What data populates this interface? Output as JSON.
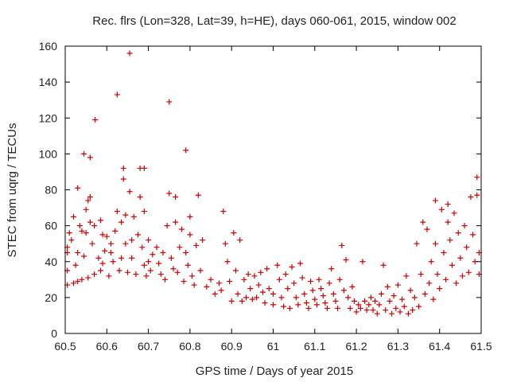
{
  "chart_data": {
    "type": "scatter",
    "title": "Rec. flrs (Lon=328, Lat=39, h=HE), days 060-061, 2015, window 002",
    "xlabel": "GPS time / Days of year 2015",
    "ylabel": "STEC from uqrg / TECUs",
    "xlim": [
      60.5,
      61.5
    ],
    "ylim": [
      0,
      160
    ],
    "xticks": [
      "60.5",
      "60.6",
      "60.7",
      "60.8",
      "60.9",
      "61",
      "61.1",
      "61.2",
      "61.3",
      "61.4",
      "61.5"
    ],
    "yticks": [
      "0",
      "20",
      "40",
      "60",
      "80",
      "100",
      "120",
      "140",
      "160"
    ],
    "marker": "+",
    "color": "#cc0000",
    "series": [
      {
        "name": "STEC",
        "points": [
          [
            60.505,
            27
          ],
          [
            60.505,
            35
          ],
          [
            60.505,
            45
          ],
          [
            60.505,
            48
          ],
          [
            60.51,
            56
          ],
          [
            60.515,
            52
          ],
          [
            60.52,
            65
          ],
          [
            60.52,
            28
          ],
          [
            60.525,
            38
          ],
          [
            60.53,
            45
          ],
          [
            60.53,
            29
          ],
          [
            60.53,
            81
          ],
          [
            60.535,
            60
          ],
          [
            60.54,
            57
          ],
          [
            60.54,
            30
          ],
          [
            60.545,
            100
          ],
          [
            60.545,
            43
          ],
          [
            60.55,
            69
          ],
          [
            60.55,
            56
          ],
          [
            60.555,
            74
          ],
          [
            60.555,
            31
          ],
          [
            60.56,
            98
          ],
          [
            60.56,
            76
          ],
          [
            60.56,
            62
          ],
          [
            60.565,
            50
          ],
          [
            60.57,
            60
          ],
          [
            60.57,
            33
          ],
          [
            60.572,
            119
          ],
          [
            60.58,
            42
          ],
          [
            60.585,
            35
          ],
          [
            60.585,
            63
          ],
          [
            60.59,
            55
          ],
          [
            60.59,
            39
          ],
          [
            60.595,
            46
          ],
          [
            60.6,
            54
          ],
          [
            60.605,
            32
          ],
          [
            60.61,
            50
          ],
          [
            60.61,
            45
          ],
          [
            60.615,
            40
          ],
          [
            60.62,
            57
          ],
          [
            60.625,
            133
          ],
          [
            60.625,
            68
          ],
          [
            60.63,
            35
          ],
          [
            60.635,
            62
          ],
          [
            60.635,
            42
          ],
          [
            60.64,
            92
          ],
          [
            60.64,
            86
          ],
          [
            60.645,
            66
          ],
          [
            60.645,
            50
          ],
          [
            60.65,
            34
          ],
          [
            60.655,
            156
          ],
          [
            60.655,
            79
          ],
          [
            60.66,
            52
          ],
          [
            60.66,
            42
          ],
          [
            60.665,
            65
          ],
          [
            60.67,
            33
          ],
          [
            60.675,
            55
          ],
          [
            60.68,
            92
          ],
          [
            60.68,
            76
          ],
          [
            60.685,
            48
          ],
          [
            60.69,
            38
          ],
          [
            60.69,
            92
          ],
          [
            60.69,
            68
          ],
          [
            60.695,
            32
          ],
          [
            60.7,
            52
          ],
          [
            60.7,
            40
          ],
          [
            60.705,
            35
          ],
          [
            60.71,
            44
          ],
          [
            60.72,
            48
          ],
          [
            60.725,
            39
          ],
          [
            60.73,
            33
          ],
          [
            60.735,
            45
          ],
          [
            60.74,
            30
          ],
          [
            60.745,
            60
          ],
          [
            60.75,
            129
          ],
          [
            60.75,
            78
          ],
          [
            60.755,
            42
          ],
          [
            60.76,
            36
          ],
          [
            60.765,
            76
          ],
          [
            60.765,
            62
          ],
          [
            60.77,
            34
          ],
          [
            60.775,
            48
          ],
          [
            60.78,
            58
          ],
          [
            60.785,
            29
          ],
          [
            60.79,
            102
          ],
          [
            60.79,
            45
          ],
          [
            60.795,
            38
          ],
          [
            60.8,
            55
          ],
          [
            60.8,
            65
          ],
          [
            60.805,
            32
          ],
          [
            60.81,
            27
          ],
          [
            60.815,
            49
          ],
          [
            60.82,
            77
          ],
          [
            60.825,
            35
          ],
          [
            60.83,
            52
          ],
          [
            60.84,
            26
          ],
          [
            60.85,
            30
          ],
          [
            60.86,
            22
          ],
          [
            60.87,
            28
          ],
          [
            60.875,
            24
          ],
          [
            60.88,
            68
          ],
          [
            60.885,
            50
          ],
          [
            60.89,
            40
          ],
          [
            60.895,
            29
          ],
          [
            60.9,
            18
          ],
          [
            60.905,
            56
          ],
          [
            60.91,
            35
          ],
          [
            60.915,
            22
          ],
          [
            60.92,
            52
          ],
          [
            60.925,
            18
          ],
          [
            60.93,
            30
          ],
          [
            60.935,
            20
          ],
          [
            60.94,
            33
          ],
          [
            60.945,
            25
          ],
          [
            60.95,
            19
          ],
          [
            60.955,
            32
          ],
          [
            60.96,
            20
          ],
          [
            60.965,
            27
          ],
          [
            60.97,
            34
          ],
          [
            60.975,
            23
          ],
          [
            60.98,
            17
          ],
          [
            60.985,
            36
          ],
          [
            60.99,
            25
          ],
          [
            61.0,
            22
          ],
          [
            61.0,
            16
          ],
          [
            61.01,
            38
          ],
          [
            61.015,
            30
          ],
          [
            61.02,
            20
          ],
          [
            61.025,
            15
          ],
          [
            61.03,
            33
          ],
          [
            61.035,
            25
          ],
          [
            61.04,
            14
          ],
          [
            61.045,
            37
          ],
          [
            61.05,
            28
          ],
          [
            61.055,
            20
          ],
          [
            61.06,
            16
          ],
          [
            61.065,
            39
          ],
          [
            61.07,
            31
          ],
          [
            61.075,
            22
          ],
          [
            61.08,
            17
          ],
          [
            61.085,
            14
          ],
          [
            61.09,
            29
          ],
          [
            61.095,
            24
          ],
          [
            61.1,
            19
          ],
          [
            61.105,
            16
          ],
          [
            61.11,
            30
          ],
          [
            61.115,
            25
          ],
          [
            61.12,
            21
          ],
          [
            61.125,
            17
          ],
          [
            61.13,
            14
          ],
          [
            61.135,
            28
          ],
          [
            61.14,
            36
          ],
          [
            61.145,
            22
          ],
          [
            61.15,
            18
          ],
          [
            61.155,
            14
          ],
          [
            61.16,
            30
          ],
          [
            61.165,
            49
          ],
          [
            61.17,
            24
          ],
          [
            61.175,
            41
          ],
          [
            61.18,
            20
          ],
          [
            61.185,
            14
          ],
          [
            61.19,
            26
          ],
          [
            61.195,
            18
          ],
          [
            61.2,
            12
          ],
          [
            61.205,
            16
          ],
          [
            61.21,
            14
          ],
          [
            61.215,
            40
          ],
          [
            61.22,
            18
          ],
          [
            61.225,
            13
          ],
          [
            61.23,
            16
          ],
          [
            61.235,
            20
          ],
          [
            61.24,
            13
          ],
          [
            61.245,
            18
          ],
          [
            61.25,
            11
          ],
          [
            61.255,
            16
          ],
          [
            61.26,
            22
          ],
          [
            61.265,
            38
          ],
          [
            61.27,
            13
          ],
          [
            61.275,
            26
          ],
          [
            61.28,
            18
          ],
          [
            61.285,
            11
          ],
          [
            61.29,
            21
          ],
          [
            61.295,
            14
          ],
          [
            61.3,
            27
          ],
          [
            61.305,
            12
          ],
          [
            61.31,
            19
          ],
          [
            61.315,
            15
          ],
          [
            61.32,
            32
          ],
          [
            61.325,
            11
          ],
          [
            61.33,
            24
          ],
          [
            61.335,
            13
          ],
          [
            61.34,
            20
          ],
          [
            61.345,
            50
          ],
          [
            61.35,
            15
          ],
          [
            61.355,
            33
          ],
          [
            61.36,
            62
          ],
          [
            61.365,
            22
          ],
          [
            61.37,
            58
          ],
          [
            61.375,
            28
          ],
          [
            61.38,
            40
          ],
          [
            61.385,
            19
          ],
          [
            61.39,
            74
          ],
          [
            61.39,
            50
          ],
          [
            61.395,
            33
          ],
          [
            61.4,
            25
          ],
          [
            61.405,
            69
          ],
          [
            61.41,
            45
          ],
          [
            61.415,
            30
          ],
          [
            61.42,
            72
          ],
          [
            61.42,
            62
          ],
          [
            61.425,
            52
          ],
          [
            61.43,
            38
          ],
          [
            61.435,
            67
          ],
          [
            61.44,
            28
          ],
          [
            61.445,
            56
          ],
          [
            61.45,
            42
          ],
          [
            61.455,
            32
          ],
          [
            61.46,
            60
          ],
          [
            61.465,
            48
          ],
          [
            61.47,
            34
          ],
          [
            61.475,
            76
          ],
          [
            61.48,
            55
          ],
          [
            61.485,
            40
          ],
          [
            61.49,
            87
          ],
          [
            61.49,
            77
          ],
          [
            61.495,
            45
          ],
          [
            61.495,
            33
          ]
        ]
      }
    ]
  }
}
